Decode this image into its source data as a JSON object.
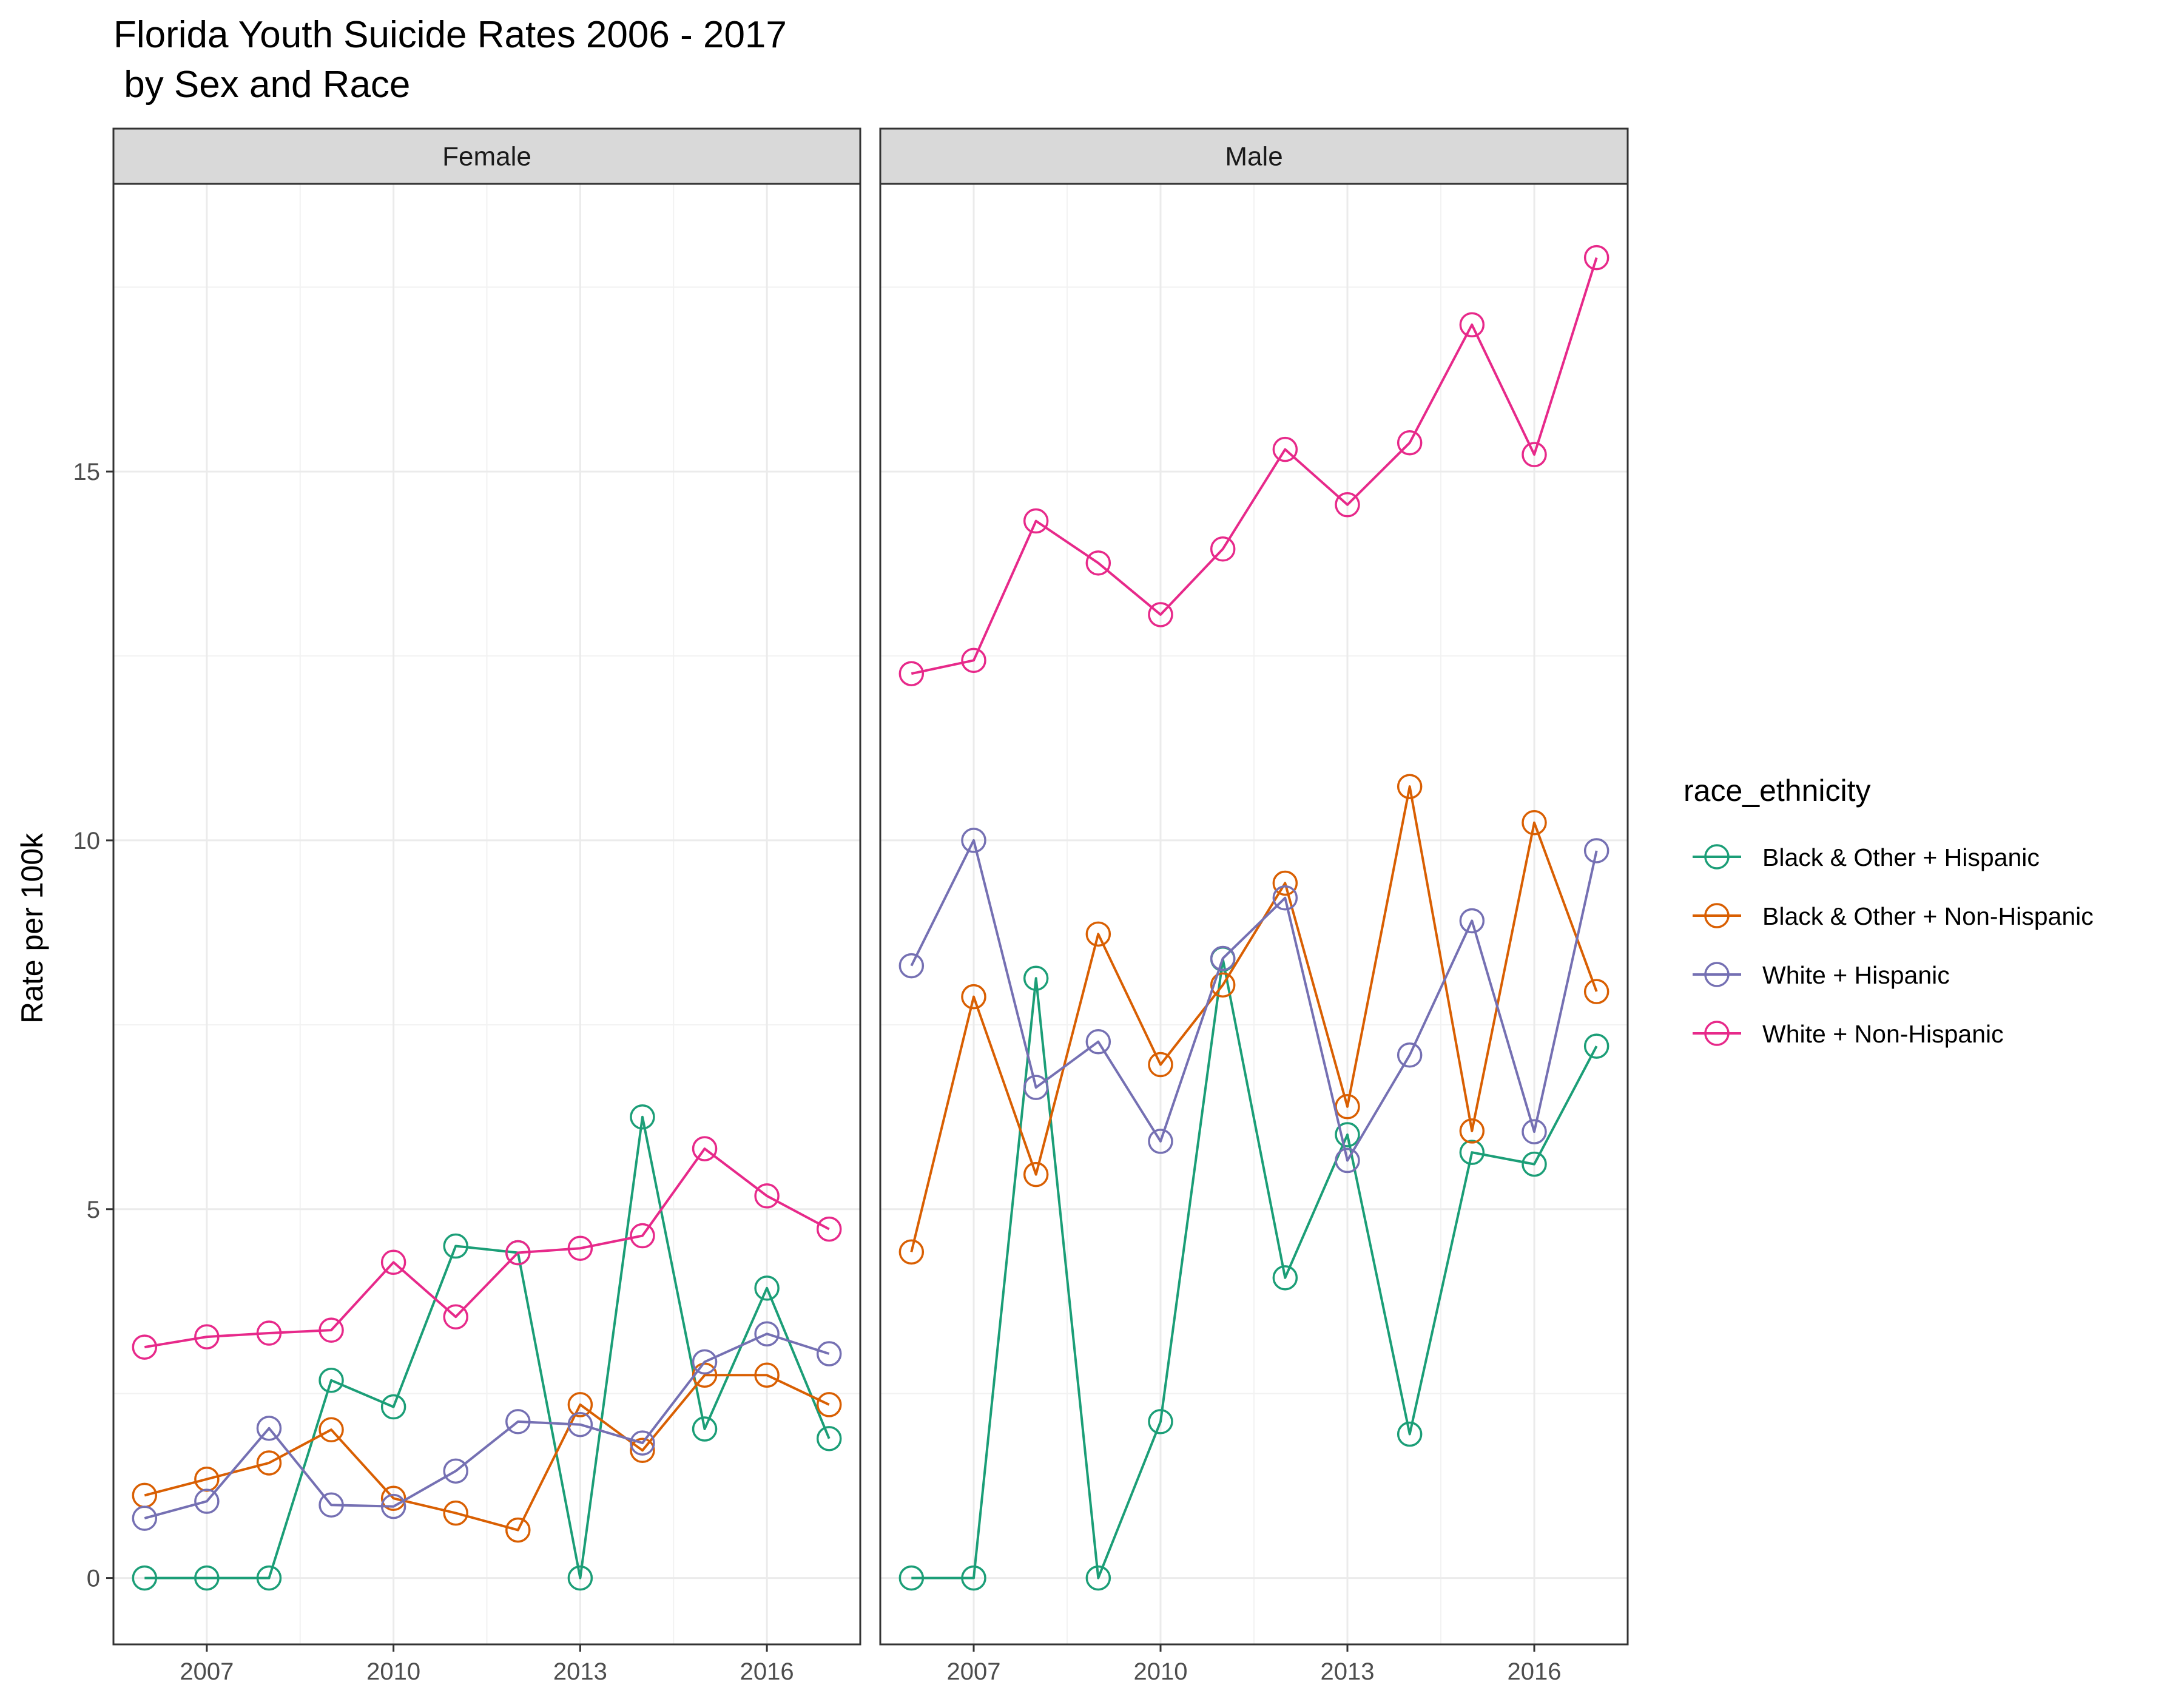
{
  "chart_data": {
    "type": "line",
    "title_line1": "Florida Youth Suicide Rates 2006 - 2017",
    "title_line2": " by Sex and Race",
    "ylabel": "Rate per 100k",
    "xlabel": "",
    "x": [
      2006,
      2007,
      2008,
      2009,
      2010,
      2011,
      2012,
      2013,
      2014,
      2015,
      2016,
      2017
    ],
    "x_ticks": [
      2007,
      2010,
      2013,
      2016
    ],
    "x_tick_labels": [
      "2007",
      "2010",
      "2013",
      "2016"
    ],
    "xlim": [
      2005.5,
      2017.5
    ],
    "y_ticks": [
      0,
      5,
      10,
      15
    ],
    "y_tick_labels": [
      "0",
      "5",
      "10",
      "15"
    ],
    "ylim": [
      -0.9,
      18.9
    ],
    "grid": true,
    "legend": {
      "title": "race_ethnicity",
      "placement": "right"
    },
    "facets": [
      {
        "label": "Female",
        "series": [
          {
            "name": "Black & Other + Hispanic",
            "color": "#1B9E77",
            "values": [
              0,
              0,
              0,
              2.68,
              2.32,
              4.5,
              4.41,
              0,
              6.25,
              2.02,
              3.93,
              1.89
            ]
          },
          {
            "name": "Black & Other + Non-Hispanic",
            "color": "#D95F02",
            "values": [
              1.12,
              1.34,
              1.56,
              2.01,
              1.08,
              0.88,
              0.65,
              2.35,
              1.73,
              2.75,
              2.75,
              2.35
            ]
          },
          {
            "name": "White + Hispanic",
            "color": "#7570B3",
            "values": [
              0.81,
              1.04,
              2.03,
              0.99,
              0.97,
              1.45,
              2.12,
              2.08,
              1.83,
              2.93,
              3.31,
              3.04
            ]
          },
          {
            "name": "White + Non-Hispanic",
            "color": "#E7298A",
            "values": [
              3.13,
              3.27,
              3.32,
              3.36,
              4.28,
              3.54,
              4.41,
              4.47,
              4.64,
              5.82,
              5.18,
              4.73
            ]
          }
        ]
      },
      {
        "label": "Male",
        "series": [
          {
            "name": "Black & Other + Hispanic",
            "color": "#1B9E77",
            "values": [
              0,
              0,
              8.13,
              0,
              2.12,
              8.39,
              4.07,
              6.01,
              1.95,
              5.77,
              5.61,
              7.21
            ]
          },
          {
            "name": "Black & Other + Non-Hispanic",
            "color": "#D95F02",
            "values": [
              4.42,
              7.88,
              5.47,
              8.73,
              6.96,
              8.04,
              9.42,
              6.39,
              10.73,
              6.06,
              10.24,
              7.95
            ]
          },
          {
            "name": "White + Hispanic",
            "color": "#7570B3",
            "values": [
              8.3,
              10.0,
              6.65,
              7.27,
              5.92,
              8.4,
              9.22,
              5.66,
              7.09,
              8.91,
              6.05,
              9.86
            ]
          },
          {
            "name": "White + Non-Hispanic",
            "color": "#E7298A",
            "values": [
              12.26,
              12.44,
              14.33,
              13.76,
              13.06,
              13.95,
              15.3,
              14.55,
              15.39,
              16.99,
              15.23,
              17.9
            ]
          }
        ]
      }
    ]
  }
}
